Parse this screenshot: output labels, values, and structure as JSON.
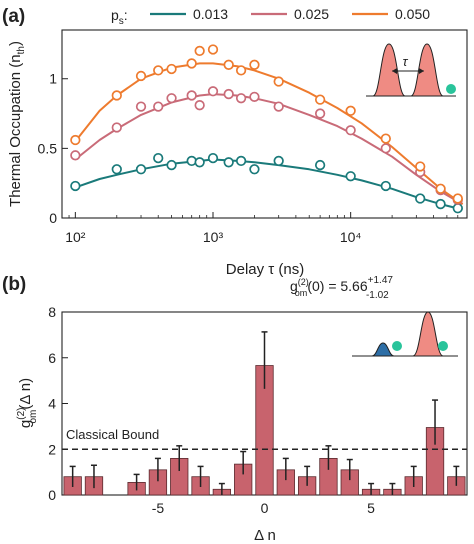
{
  "colors": {
    "p1": "#1a7a7a",
    "p2": "#c96b78",
    "p3": "#ee7b2e",
    "bar": "#c8636d",
    "pulse": "#ef8b83",
    "pulse_dark": "#2d6ea6",
    "dot": "#29c49b"
  },
  "chart_data": [
    {
      "panel_label": "(a)",
      "type": "scatter",
      "xlabel": "Delay τ (ns)",
      "ylabel": "Thermal Occupation (n_th)",
      "x_scale": "log",
      "xlim": [
        80,
        70000
      ],
      "ylim": [
        0,
        1.35
      ],
      "xticks": [
        100,
        1000,
        10000
      ],
      "xtick_labels": [
        "10²",
        "10³",
        "10⁴"
      ],
      "yticks": [
        0,
        0.5,
        1
      ],
      "ytick_labels": [
        "0",
        "0.5",
        "1"
      ],
      "legend_title": "p_s:",
      "legend_position": "top",
      "inset_label": "τ",
      "series": [
        {
          "name": "0.013",
          "color_key": "p1",
          "points": [
            [
              100,
              0.23
            ],
            [
              200,
              0.35
            ],
            [
              300,
              0.35
            ],
            [
              400,
              0.43
            ],
            [
              500,
              0.38
            ],
            [
              700,
              0.41
            ],
            [
              800,
              0.4
            ],
            [
              1000,
              0.43
            ],
            [
              1300,
              0.4
            ],
            [
              1600,
              0.41
            ],
            [
              2000,
              0.35
            ],
            [
              3000,
              0.41
            ],
            [
              6000,
              0.38
            ],
            [
              10000,
              0.3
            ],
            [
              18000,
              0.23
            ],
            [
              32000,
              0.14
            ],
            [
              45000,
              0.1
            ],
            [
              60000,
              0.07
            ]
          ],
          "fit": [
            [
              100,
              0.22
            ],
            [
              150,
              0.28
            ],
            [
              200,
              0.31
            ],
            [
              300,
              0.35
            ],
            [
              500,
              0.39
            ],
            [
              800,
              0.41
            ],
            [
              1000,
              0.42
            ],
            [
              1500,
              0.41
            ],
            [
              2000,
              0.4
            ],
            [
              3000,
              0.38
            ],
            [
              5000,
              0.35
            ],
            [
              8000,
              0.31
            ],
            [
              12000,
              0.27
            ],
            [
              20000,
              0.21
            ],
            [
              30000,
              0.15
            ],
            [
              45000,
              0.1
            ],
            [
              65000,
              0.06
            ]
          ]
        },
        {
          "name": "0.025",
          "color_key": "p2",
          "points": [
            [
              100,
              0.45
            ],
            [
              200,
              0.65
            ],
            [
              300,
              0.8
            ],
            [
              400,
              0.8
            ],
            [
              500,
              0.86
            ],
            [
              700,
              0.88
            ],
            [
              800,
              0.81
            ],
            [
              1000,
              0.91
            ],
            [
              1300,
              0.89
            ],
            [
              1600,
              0.86
            ],
            [
              2000,
              0.87
            ],
            [
              3000,
              0.8
            ],
            [
              6000,
              0.75
            ],
            [
              10000,
              0.63
            ],
            [
              18000,
              0.5
            ],
            [
              32000,
              0.33
            ],
            [
              45000,
              0.2
            ],
            [
              60000,
              0.13
            ]
          ],
          "fit": [
            [
              100,
              0.42
            ],
            [
              150,
              0.56
            ],
            [
              200,
              0.64
            ],
            [
              300,
              0.74
            ],
            [
              500,
              0.83
            ],
            [
              800,
              0.88
            ],
            [
              1000,
              0.89
            ],
            [
              1500,
              0.88
            ],
            [
              2000,
              0.86
            ],
            [
              3000,
              0.82
            ],
            [
              5000,
              0.74
            ],
            [
              8000,
              0.66
            ],
            [
              12000,
              0.57
            ],
            [
              20000,
              0.44
            ],
            [
              30000,
              0.31
            ],
            [
              45000,
              0.19
            ],
            [
              65000,
              0.1
            ]
          ]
        },
        {
          "name": "0.050",
          "color_key": "p3",
          "points": [
            [
              100,
              0.56
            ],
            [
              200,
              0.88
            ],
            [
              300,
              1.02
            ],
            [
              400,
              1.06
            ],
            [
              500,
              1.07
            ],
            [
              700,
              1.11
            ],
            [
              800,
              1.2
            ],
            [
              1000,
              1.21
            ],
            [
              1300,
              1.1
            ],
            [
              1600,
              1.06
            ],
            [
              2000,
              1.1
            ],
            [
              3000,
              0.98
            ],
            [
              6000,
              0.85
            ],
            [
              10000,
              0.77
            ],
            [
              18000,
              0.57
            ],
            [
              32000,
              0.37
            ],
            [
              45000,
              0.21
            ],
            [
              60000,
              0.14
            ]
          ],
          "fit": [
            [
              100,
              0.55
            ],
            [
              150,
              0.77
            ],
            [
              200,
              0.88
            ],
            [
              300,
              1.0
            ],
            [
              500,
              1.08
            ],
            [
              800,
              1.11
            ],
            [
              1000,
              1.11
            ],
            [
              1500,
              1.09
            ],
            [
              2000,
              1.06
            ],
            [
              3000,
              1.0
            ],
            [
              5000,
              0.9
            ],
            [
              8000,
              0.79
            ],
            [
              12000,
              0.68
            ],
            [
              20000,
              0.51
            ],
            [
              30000,
              0.36
            ],
            [
              45000,
              0.21
            ],
            [
              65000,
              0.1
            ]
          ]
        }
      ]
    },
    {
      "panel_label": "(b)",
      "type": "bar",
      "xlabel": "Δ n",
      "ylabel": "g_om^(2)(Δ n)",
      "xlim": [
        -9.5,
        9.5
      ],
      "ylim": [
        0,
        8
      ],
      "xticks": [
        -5,
        0,
        5
      ],
      "xtick_labels": [
        "-5",
        "0",
        "5"
      ],
      "yticks": [
        0,
        2,
        4,
        6,
        8
      ],
      "ytick_labels": [
        "0",
        "2",
        "4",
        "6",
        "8"
      ],
      "annotation": "g_om^(2)(0) = 5.66 +1.47 −1.02",
      "bound_label": "Classical Bound",
      "bound_value": 2,
      "x": [
        -9,
        -8,
        -7,
        -6,
        -5,
        -4,
        -3,
        -2,
        -1,
        0,
        1,
        2,
        3,
        4,
        5,
        6,
        7,
        8,
        9
      ],
      "values": [
        0.8,
        0.8,
        0.0,
        0.55,
        1.1,
        1.6,
        0.8,
        0.25,
        1.35,
        5.66,
        1.1,
        0.8,
        1.6,
        1.1,
        0.25,
        0.25,
        0.8,
        2.95,
        0.8
      ],
      "err_low": [
        0.45,
        0.5,
        0.0,
        0.35,
        0.5,
        0.55,
        0.45,
        0.25,
        0.45,
        1.02,
        0.45,
        0.4,
        0.5,
        0.45,
        0.25,
        0.25,
        0.45,
        0.75,
        0.4
      ],
      "err_high": [
        0.45,
        0.5,
        0.0,
        0.35,
        0.5,
        0.55,
        0.45,
        0.25,
        0.55,
        1.47,
        0.5,
        0.45,
        0.55,
        0.45,
        0.25,
        0.25,
        0.45,
        1.2,
        0.45
      ]
    }
  ]
}
